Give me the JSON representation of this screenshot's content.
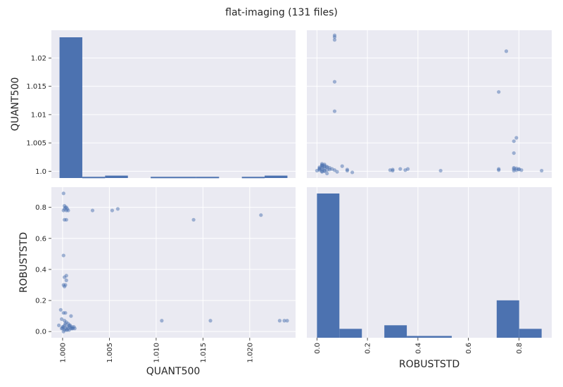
{
  "chart_data": {
    "type": "scatter-matrix",
    "title": "flat-imaging (131 files)",
    "variables": [
      "QUANT500",
      "ROBUSTSTD"
    ],
    "axes": {
      "QUANT500": {
        "label": "QUANT500",
        "range": [
          0.9988,
          1.0249
        ],
        "ticks": [
          1.0,
          1.005,
          1.01,
          1.015,
          1.02
        ],
        "tick_labels_y": [
          "1.0",
          "1.005",
          "1.01",
          "1.015",
          "1.02"
        ],
        "tick_labels_x": [
          "1.000",
          "1.005",
          "1.010",
          "1.015",
          "1.020"
        ]
      },
      "ROBUSTSTD": {
        "label": "ROBUSTSTD",
        "range": [
          -0.04,
          0.93
        ],
        "ticks": [
          0.0,
          0.2,
          0.4,
          0.6,
          0.8
        ],
        "tick_labels": [
          "0.0",
          "0.2",
          "0.4",
          "0.6",
          "0.8"
        ]
      }
    },
    "histograms": {
      "QUANT500": {
        "bin_range": [
          0.99967,
          1.02403
        ],
        "counts": [
          117,
          1,
          2,
          0,
          1,
          1,
          1,
          0,
          1,
          2
        ]
      },
      "ROBUSTSTD": {
        "bin_range": [
          0.0,
          0.89
        ],
        "counts": [
          81,
          5,
          0,
          7,
          1,
          1,
          0,
          0,
          21,
          5
        ]
      }
    },
    "points": [
      {
        "q": 0.9996,
        "r": 0.04
      },
      {
        "q": 0.9998,
        "r": 0.14
      },
      {
        "q": 0.9999,
        "r": 0.02
      },
      {
        "q": 1.0,
        "r": 0.03
      },
      {
        "q": 1.0001,
        "r": 0.0
      },
      {
        "q": 1.0002,
        "r": 0.01
      },
      {
        "q": 1.0,
        "r": 0.02
      },
      {
        "q": 1.0001,
        "r": 0.03
      },
      {
        "q": 1.0002,
        "r": 0.04
      },
      {
        "q": 1.0003,
        "r": 0.02
      },
      {
        "q": 1.0004,
        "r": 0.01
      },
      {
        "q": 1.0005,
        "r": 0.03
      },
      {
        "q": 1.0006,
        "r": 0.02
      },
      {
        "q": 1.0007,
        "r": 0.04
      },
      {
        "q": 1.0008,
        "r": 0.03
      },
      {
        "q": 1.0009,
        "r": 0.02
      },
      {
        "q": 1.001,
        "r": 0.03
      },
      {
        "q": 1.0011,
        "r": 0.02
      },
      {
        "q": 1.0012,
        "r": 0.03
      },
      {
        "q": 1.0013,
        "r": 0.02
      },
      {
        "q": 1.0003,
        "r": 0.05
      },
      {
        "q": 1.0006,
        "r": 0.05
      },
      {
        "q": 1.0008,
        "r": 0.04
      },
      {
        "q": 1.0004,
        "r": 0.06
      },
      {
        "q": 1.0002,
        "r": 0.07
      },
      {
        "q": 0.9999,
        "r": 0.08
      },
      {
        "q": 1.0001,
        "r": 0.12
      },
      {
        "q": 1.0003,
        "r": 0.12
      },
      {
        "q": 1.0009,
        "r": 0.1
      },
      {
        "q": 1.0005,
        "r": 0.01
      },
      {
        "q": 1.0007,
        "r": 0.01
      },
      {
        "q": 1.001,
        "r": 0.02
      },
      {
        "q": 1.0001,
        "r": 0.3
      },
      {
        "q": 1.0002,
        "r": 0.29
      },
      {
        "q": 1.0003,
        "r": 0.3
      },
      {
        "q": 1.0004,
        "r": 0.33
      },
      {
        "q": 1.0002,
        "r": 0.35
      },
      {
        "q": 1.0004,
        "r": 0.36
      },
      {
        "q": 1.0001,
        "r": 0.49
      },
      {
        "q": 1.0002,
        "r": 0.72
      },
      {
        "q": 1.0004,
        "r": 0.72
      },
      {
        "q": 1.0001,
        "r": 0.78
      },
      {
        "q": 1.0002,
        "r": 0.79
      },
      {
        "q": 1.0003,
        "r": 0.8
      },
      {
        "q": 1.0004,
        "r": 0.78
      },
      {
        "q": 1.0005,
        "r": 0.79
      },
      {
        "q": 1.0006,
        "r": 0.78
      },
      {
        "q": 1.0002,
        "r": 0.81
      },
      {
        "q": 1.0004,
        "r": 0.8
      },
      {
        "q": 1.0001,
        "r": 0.89
      },
      {
        "q": 1.0032,
        "r": 0.78
      },
      {
        "q": 1.0053,
        "r": 0.78
      },
      {
        "q": 1.0059,
        "r": 0.79
      },
      {
        "q": 1.0106,
        "r": 0.07
      },
      {
        "q": 1.014,
        "r": 0.72
      },
      {
        "q": 1.0158,
        "r": 0.07
      },
      {
        "q": 1.0212,
        "r": 0.75
      },
      {
        "q": 1.0232,
        "r": 0.07
      },
      {
        "q": 1.0237,
        "r": 0.07
      },
      {
        "q": 1.024,
        "r": 0.07
      }
    ]
  }
}
